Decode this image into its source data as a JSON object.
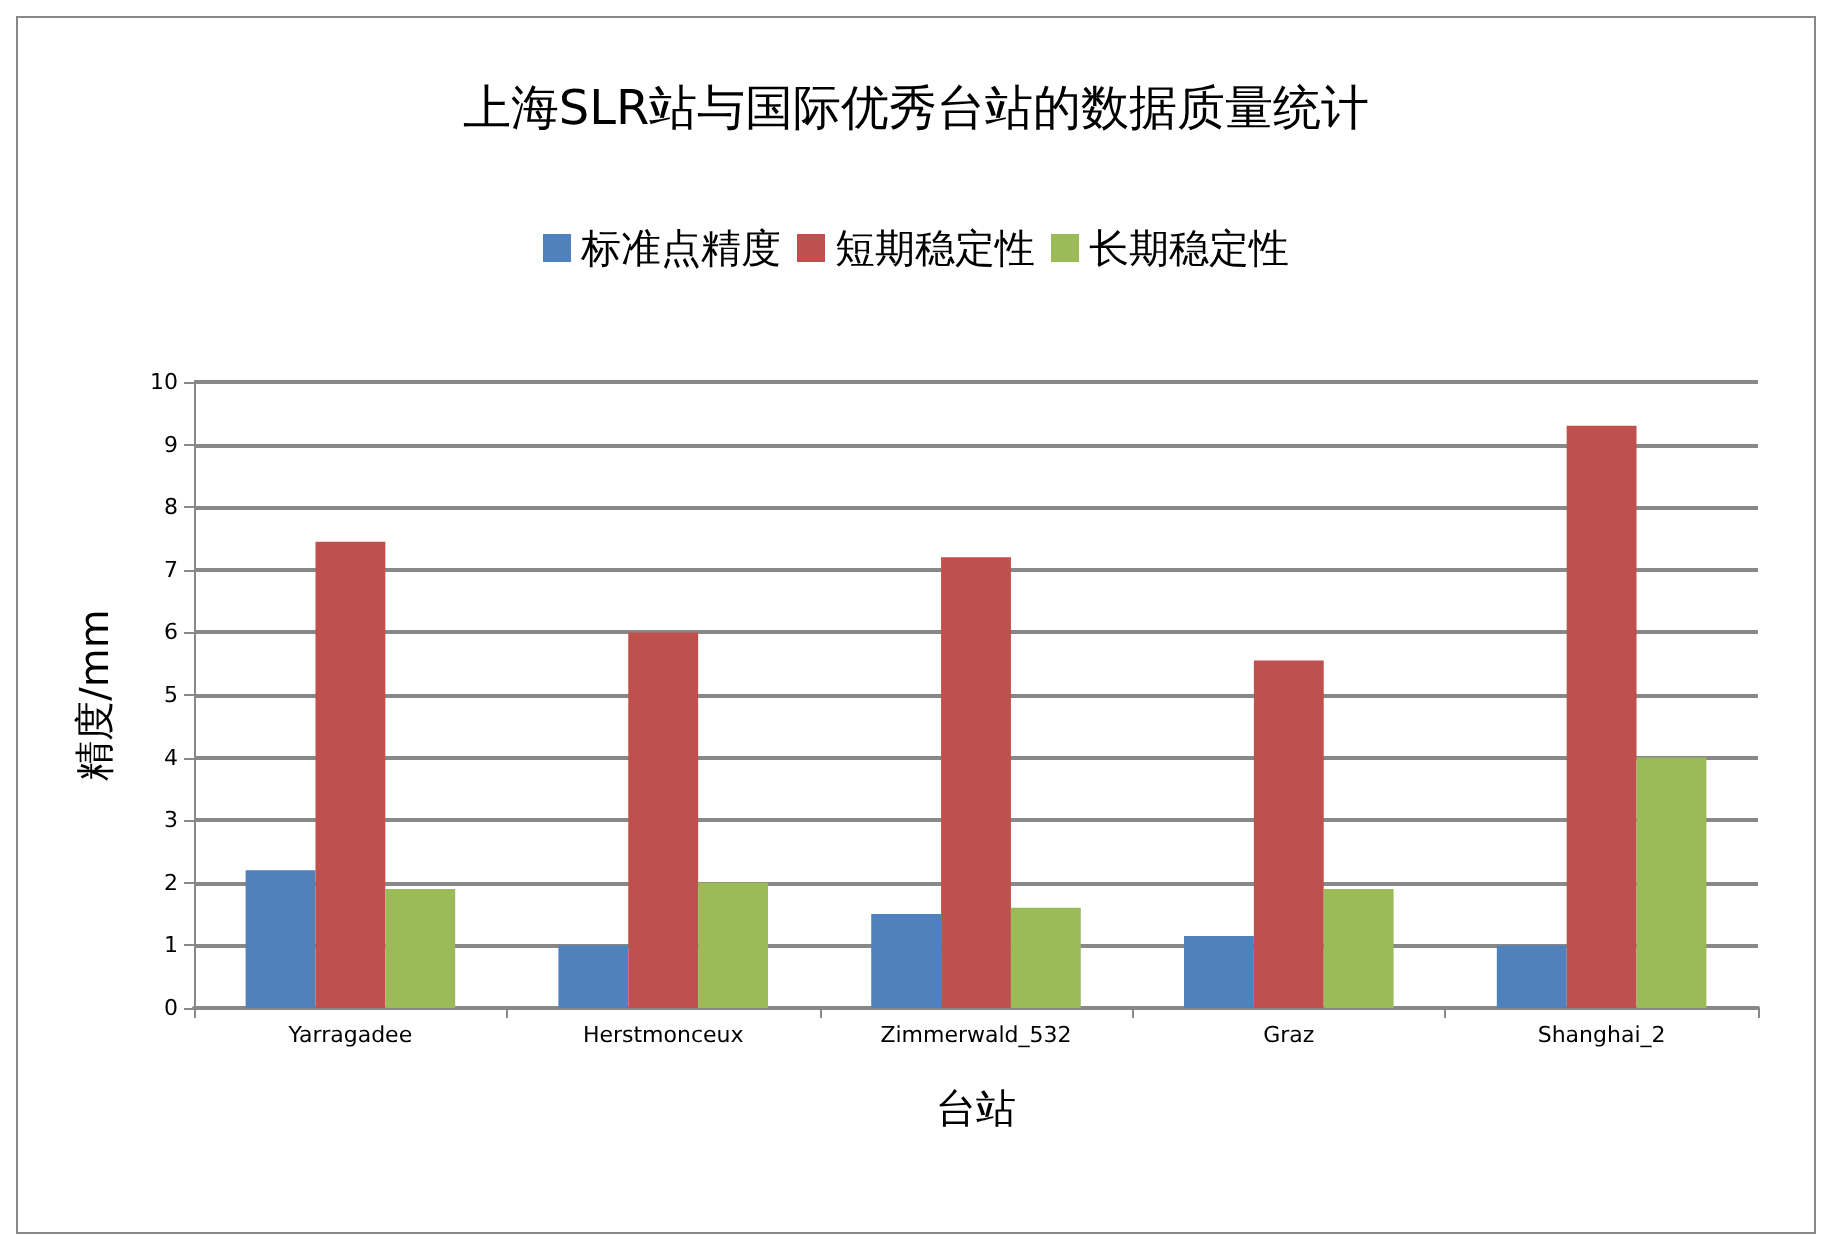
{
  "chart_data": {
    "type": "bar",
    "title": "上海SLR站与国际优秀台站的数据质量统计",
    "xlabel": "台站",
    "ylabel": "精度/mm",
    "categories": [
      "Yarragadee",
      "Herstmonceux",
      "Zimmerwald_532",
      "Graz",
      "Shanghai_2"
    ],
    "series": [
      {
        "name": "标准点精度",
        "color": "#4f81bd",
        "values": [
          2.2,
          1.0,
          1.5,
          1.15,
          1.0
        ]
      },
      {
        "name": "短期稳定性",
        "color": "#c0504d",
        "values": [
          7.45,
          6.0,
          7.2,
          5.55,
          9.3
        ]
      },
      {
        "name": "长期稳定性",
        "color": "#9bbb59",
        "values": [
          1.9,
          2.0,
          1.6,
          1.9,
          4.0
        ]
      }
    ],
    "ylim": [
      0,
      10
    ],
    "yticks": [
      0,
      1,
      2,
      3,
      4,
      5,
      6,
      7,
      8,
      9,
      10
    ],
    "grid": "y",
    "legend": "top"
  }
}
